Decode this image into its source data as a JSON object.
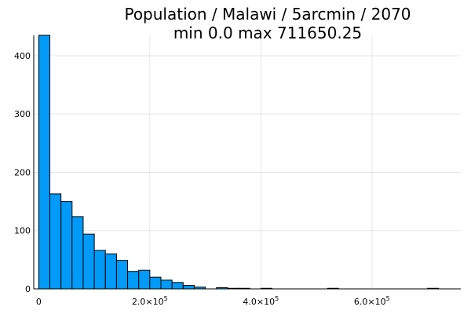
{
  "chart_data": {
    "type": "bar",
    "title_line1": "Population / Malawi / 5arcmin / 2070",
    "title_line2": "min 0.0  max 711650.25",
    "xlabel": "",
    "ylabel": "",
    "bin_width": 20000,
    "bin_start": 0,
    "values": [
      435,
      163,
      150,
      124,
      94,
      66,
      60,
      49,
      30,
      32,
      20,
      15,
      11,
      6,
      3,
      0,
      2,
      1,
      1,
      0,
      1,
      0,
      0,
      0,
      0,
      0,
      1,
      0,
      0,
      0,
      0,
      0,
      0,
      0,
      0,
      1
    ],
    "xlim": [
      -9000,
      760000
    ],
    "ylim": [
      0,
      435
    ],
    "x_ticks": [
      {
        "value": 0,
        "label": "0",
        "exp": ""
      },
      {
        "value": 200000,
        "label": "2.0×10",
        "exp": "5"
      },
      {
        "value": 400000,
        "label": "4.0×10",
        "exp": "5"
      },
      {
        "value": 600000,
        "label": "6.0×10",
        "exp": "5"
      }
    ],
    "y_ticks": [
      {
        "value": 0,
        "label": "0"
      },
      {
        "value": 100,
        "label": "100"
      },
      {
        "value": 200,
        "label": "200"
      },
      {
        "value": 300,
        "label": "300"
      },
      {
        "value": 400,
        "label": "400"
      }
    ],
    "grid": true,
    "legend": "none",
    "bar_color": "#009af9"
  }
}
